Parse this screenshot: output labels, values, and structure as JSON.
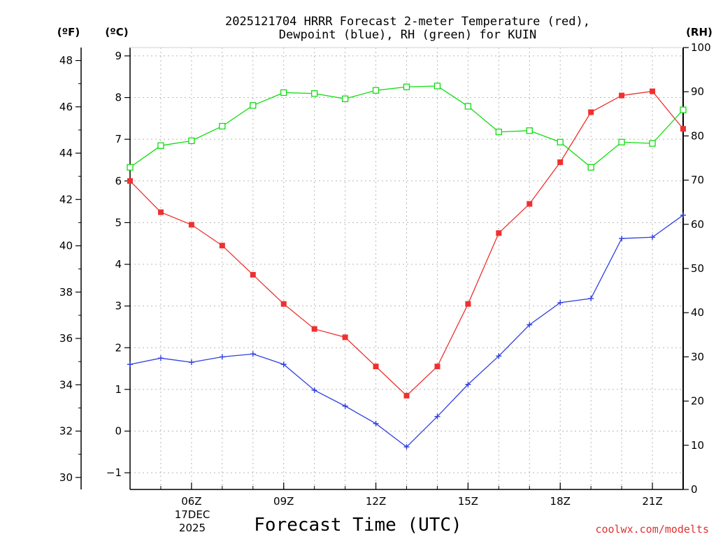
{
  "chart_data": {
    "type": "line",
    "title_line1": "2025121704 HRRR Forecast 2-meter Temperature (red),",
    "title_line2": "Dewpoint (blue), RH (green) for KUIN",
    "xlabel": "Forecast Time (UTC)",
    "credit": "coolwx.com/modelts",
    "axis_units": {
      "fahrenheit": "(ºF)",
      "celsius": "(ºC)",
      "rh": "(RH)"
    },
    "x_hours": [
      4,
      5,
      6,
      7,
      8,
      9,
      10,
      11,
      12,
      13,
      14,
      15,
      16,
      17,
      18,
      19,
      20,
      21,
      22
    ],
    "x_range": [
      4,
      22
    ],
    "x_ticks": [
      {
        "hour": 6,
        "label": "06Z"
      },
      {
        "hour": 9,
        "label": "09Z"
      },
      {
        "hour": 12,
        "label": "12Z"
      },
      {
        "hour": 15,
        "label": "15Z"
      },
      {
        "hour": 18,
        "label": "18Z"
      },
      {
        "hour": 21,
        "label": "21Z"
      }
    ],
    "date_label_day": "17DEC",
    "date_label_year": "2025",
    "celsius_range": [
      -1.4,
      9.2
    ],
    "celsius_ticks": [
      -1,
      0,
      1,
      2,
      3,
      4,
      5,
      6,
      7,
      8,
      9
    ],
    "fahrenheit_ticks": [
      30,
      32,
      34,
      36,
      38,
      40,
      42,
      44,
      46,
      48
    ],
    "rh_range": [
      0,
      100
    ],
    "rh_ticks": [
      0,
      10,
      20,
      30,
      40,
      50,
      60,
      70,
      80,
      90,
      100
    ],
    "series": [
      {
        "name": "Temperature",
        "axis": "celsius",
        "color": "#ee3030",
        "marker": "filled-square",
        "values": [
          6.0,
          5.25,
          4.95,
          4.45,
          3.75,
          3.05,
          2.45,
          2.25,
          1.55,
          0.85,
          1.55,
          3.05,
          4.75,
          5.45,
          6.45,
          7.65,
          8.05,
          8.15,
          7.25
        ]
      },
      {
        "name": "Dewpoint",
        "axis": "celsius",
        "color": "#3040e0",
        "marker": "plus",
        "values": [
          1.6,
          1.75,
          1.65,
          1.78,
          1.85,
          1.6,
          0.98,
          0.6,
          0.18,
          -0.38,
          0.35,
          1.12,
          1.8,
          2.55,
          3.08,
          3.18,
          4.62,
          4.65,
          5.18
        ]
      },
      {
        "name": "RH",
        "axis": "rh",
        "color": "#10dd10",
        "marker": "open-square",
        "values": [
          72.9,
          77.8,
          78.9,
          82.2,
          86.9,
          89.8,
          89.6,
          88.4,
          90.3,
          91.1,
          91.3,
          86.7,
          80.9,
          81.2,
          78.6,
          72.9,
          78.6,
          78.3,
          85.9
        ]
      }
    ]
  }
}
